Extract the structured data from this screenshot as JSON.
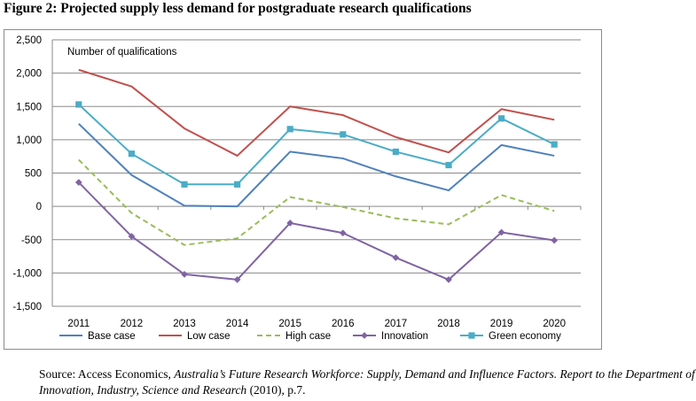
{
  "figure_title": "Figure 2: Projected supply less demand for postgraduate research qualifications",
  "source": {
    "prefix": "Source: Access Economics, ",
    "title_italic": "Australia’s Future Research Workforce: Supply, Demand and Influence Factors. Report to the Department of Innovation, Industry, Science and Research",
    "suffix": " (2010), p.7."
  },
  "chart_data": {
    "type": "line",
    "title": "",
    "xlabel": "",
    "ylabel": "Number of qualifications",
    "x": [
      "2011",
      "2012",
      "2013",
      "2014",
      "2015",
      "2016",
      "2017",
      "2018",
      "2019",
      "2020"
    ],
    "ylim": [
      -1500,
      2500
    ],
    "yticks": [
      -1500,
      -1000,
      -500,
      0,
      500,
      1000,
      1500,
      2000,
      2500
    ],
    "ytick_labels": [
      "-1,500",
      "-1,000",
      "-500",
      "0",
      "500",
      "1,000",
      "1,500",
      "2,000",
      "2,500"
    ],
    "grid": "horizontal",
    "legend_position": "bottom",
    "series": [
      {
        "name": "Base case",
        "color": "#4f81bd",
        "style": "solid",
        "marker": "none",
        "values": [
          1240,
          470,
          10,
          0,
          820,
          720,
          450,
          240,
          920,
          760
        ]
      },
      {
        "name": "Low case",
        "color": "#c0504d",
        "style": "solid",
        "marker": "none",
        "values": [
          2050,
          1800,
          1170,
          760,
          1500,
          1370,
          1040,
          810,
          1460,
          1300
        ]
      },
      {
        "name": "High case",
        "color": "#9bbb59",
        "style": "dashed",
        "marker": "none",
        "values": [
          700,
          -100,
          -580,
          -480,
          140,
          -10,
          -180,
          -270,
          170,
          -70
        ]
      },
      {
        "name": "Innovation",
        "color": "#8064a2",
        "style": "solid",
        "marker": "diamond",
        "values": [
          360,
          -450,
          -1020,
          -1100,
          -250,
          -400,
          -770,
          -1100,
          -390,
          -510
        ]
      },
      {
        "name": "Green economy",
        "color": "#4bacc6",
        "style": "solid",
        "marker": "square",
        "values": [
          1530,
          790,
          330,
          330,
          1160,
          1080,
          820,
          620,
          1320,
          930
        ]
      }
    ]
  }
}
